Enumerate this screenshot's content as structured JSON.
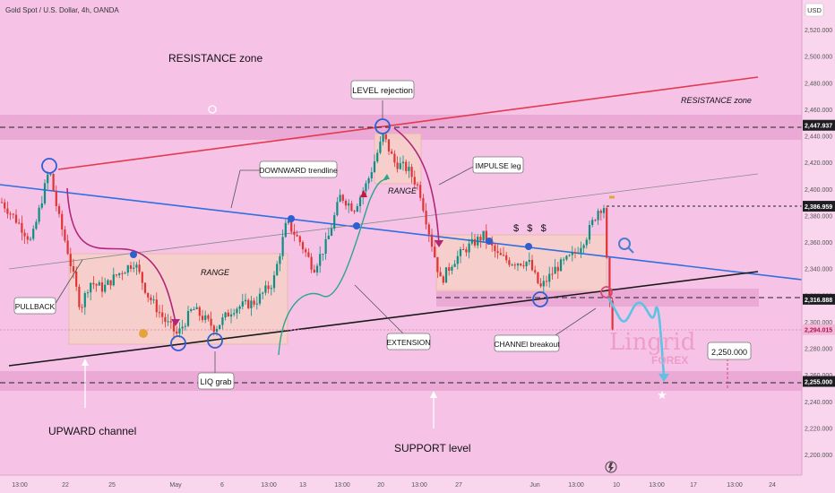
{
  "header": {
    "symbol": "Gold Spot / U.S. Dollar, 4h, OANDA",
    "currency": "USD"
  },
  "chart_data": {
    "type": "candlestick",
    "y_ticks": [
      2200,
      2220,
      2240,
      2260,
      2280,
      2300,
      2320,
      2340,
      2360,
      2380,
      2400,
      2420,
      2440,
      2460,
      2480,
      2500,
      2520
    ],
    "x_ticks": [
      "13:00",
      "22",
      "25",
      "May",
      "6",
      "13:00",
      "13",
      "13:00",
      "20",
      "13:00",
      "27",
      "Jun",
      "13:00",
      "10",
      "13:00",
      "17",
      "13:00",
      "24"
    ],
    "price_labels": [
      {
        "value": "2,447.937",
        "style": "dark"
      },
      {
        "value": "2,386.959",
        "style": "dark"
      },
      {
        "value": "2,316.888",
        "style": "dark"
      },
      {
        "value": "2,294.015",
        "style": "pink"
      },
      {
        "value": "2,255.000",
        "style": "dark"
      }
    ],
    "levels": {
      "resistance": 2447.937,
      "support": 2255.0,
      "channel_break": 2316.888,
      "target": 2250.0
    },
    "annotations": {
      "resistance_zone_top": "RESISTANCE zone",
      "resistance_zone_right": "RESISTANCE zone",
      "level_rejection": "LEVEL rejection",
      "downward_trendline": "DOWNWARD trendline",
      "impulse_leg": "IMPULSE leg",
      "range_left": "RANGE",
      "range_mid": "RANGE",
      "pullback": "PULLBACK",
      "liq_grab": "LIQ grab",
      "extension": "EXTENSION",
      "channel_breakout": "CHANNEl breakout",
      "upward_channel": "UPWARD channel",
      "support_level": "SUPPORT level",
      "target_value": "2,250.000",
      "dollars": "$   $   $"
    },
    "watermark": {
      "line1": "Lingrid",
      "line2": "FOREX"
    },
    "colors": {
      "up": "#0b8f80",
      "down": "#e03333",
      "resistance_line": "#e23a4f",
      "trend_line": "#2f6fe0",
      "channel_line": "#1a1a1a",
      "background": "#f6c3e7"
    }
  }
}
